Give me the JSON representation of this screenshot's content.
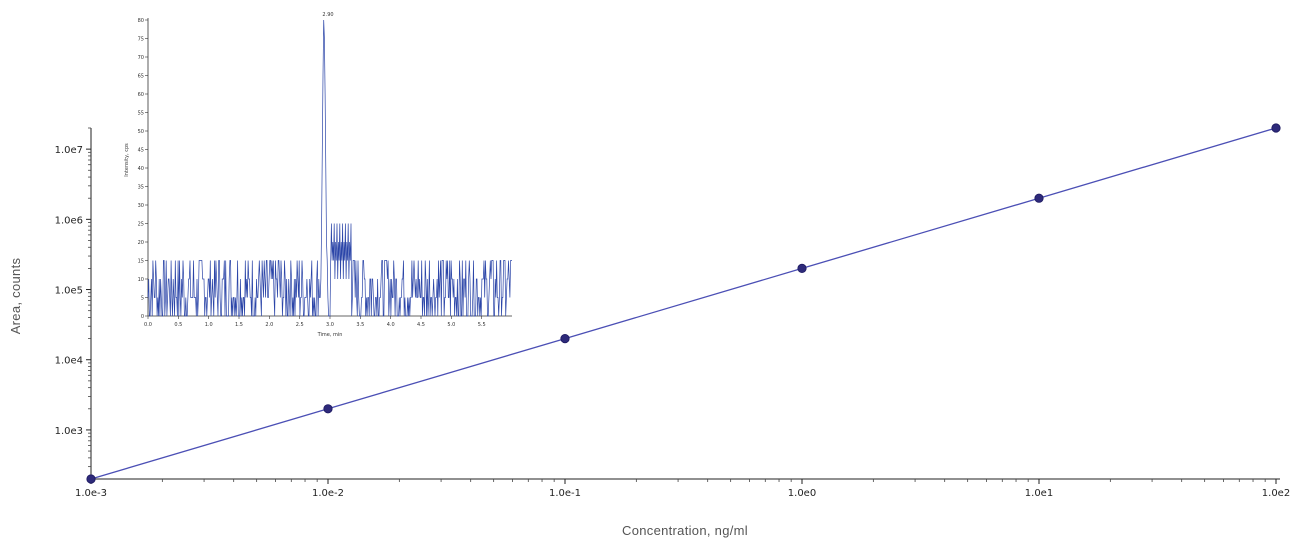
{
  "chart_data": [
    {
      "type": "line",
      "title": "",
      "xlabel": "Concentration, ng/ml",
      "ylabel": "Area, counts",
      "xscale": "log",
      "yscale": "log",
      "xlim": [
        0.001,
        100
      ],
      "ylim": [
        200,
        20000000
      ],
      "xticks": [
        "1.0e-3",
        "1.0e-2",
        "1.0e-1",
        "1.0e0",
        "1.0e1",
        "1.0e2"
      ],
      "yticks": [
        "1.0e3",
        "1.0e4",
        "1.0e5",
        "1.0e6",
        "1.0e7"
      ],
      "grid": false,
      "series": [
        {
          "x": [
            0.001,
            0.01,
            0.1,
            1,
            10,
            100
          ],
          "y": [
            200,
            2000,
            20000,
            200000,
            2000000,
            20000000
          ],
          "color": "#4b4fb5",
          "marker_color": "#2e2a7a"
        }
      ]
    },
    {
      "type": "line",
      "title": "",
      "xlabel": "Time, min",
      "ylabel": "Intensity, cps",
      "xlim": [
        0,
        6
      ],
      "ylim": [
        0,
        80
      ],
      "xticks": [
        "0.0",
        "0.5",
        "1.0",
        "1.5",
        "2.0",
        "2.5",
        "3.0",
        "3.5",
        "4.0",
        "4.5",
        "5.0",
        "5.5"
      ],
      "yticks": [
        "0",
        "5",
        "10",
        "15",
        "20",
        "25",
        "30",
        "35",
        "40",
        "45",
        "50",
        "55",
        "60",
        "65",
        "70",
        "75",
        "80"
      ],
      "peak_label": "2.90",
      "peak_x": 2.9,
      "peak_y": 80,
      "noise_levels": [
        0,
        5,
        10,
        15
      ],
      "color": "#2b45a8"
    }
  ]
}
